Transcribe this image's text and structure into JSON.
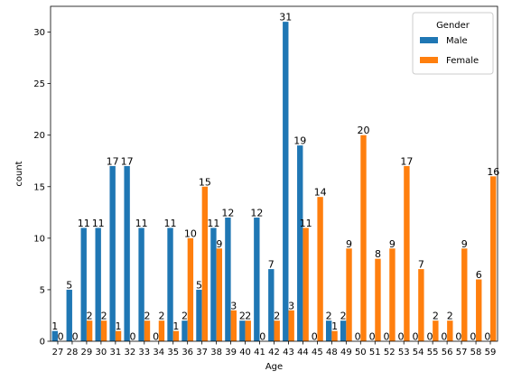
{
  "chart_data": {
    "type": "bar",
    "xlabel": "Age",
    "ylabel": "count",
    "ylim": [
      0,
      32.5
    ],
    "yticks": [
      0,
      5,
      10,
      15,
      20,
      25,
      30
    ],
    "categories": [
      "27",
      "28",
      "29",
      "30",
      "31",
      "32",
      "33",
      "34",
      "35",
      "36",
      "37",
      "38",
      "39",
      "40",
      "41",
      "42",
      "43",
      "44",
      "45",
      "48",
      "49",
      "50",
      "51",
      "52",
      "53",
      "54",
      "55",
      "56",
      "57",
      "58",
      "59"
    ],
    "series": [
      {
        "name": "Male",
        "color": "#1f77b4",
        "values": [
          1,
          5,
          11,
          11,
          17,
          17,
          11,
          0,
          11,
          2,
          5,
          11,
          12,
          2,
          12,
          7,
          31,
          19,
          0,
          2,
          2,
          0,
          0,
          0,
          0,
          0,
          0,
          0,
          0,
          0,
          0
        ]
      },
      {
        "name": "Female",
        "color": "#ff7f0e",
        "values": [
          0,
          0,
          2,
          2,
          1,
          0,
          2,
          2,
          1,
          10,
          15,
          9,
          3,
          2,
          0,
          2,
          3,
          11,
          14,
          1,
          9,
          20,
          8,
          9,
          17,
          7,
          2,
          2,
          9,
          6,
          16
        ]
      }
    ],
    "legend": {
      "title": "Gender",
      "position": "top-right"
    },
    "grid": false
  }
}
